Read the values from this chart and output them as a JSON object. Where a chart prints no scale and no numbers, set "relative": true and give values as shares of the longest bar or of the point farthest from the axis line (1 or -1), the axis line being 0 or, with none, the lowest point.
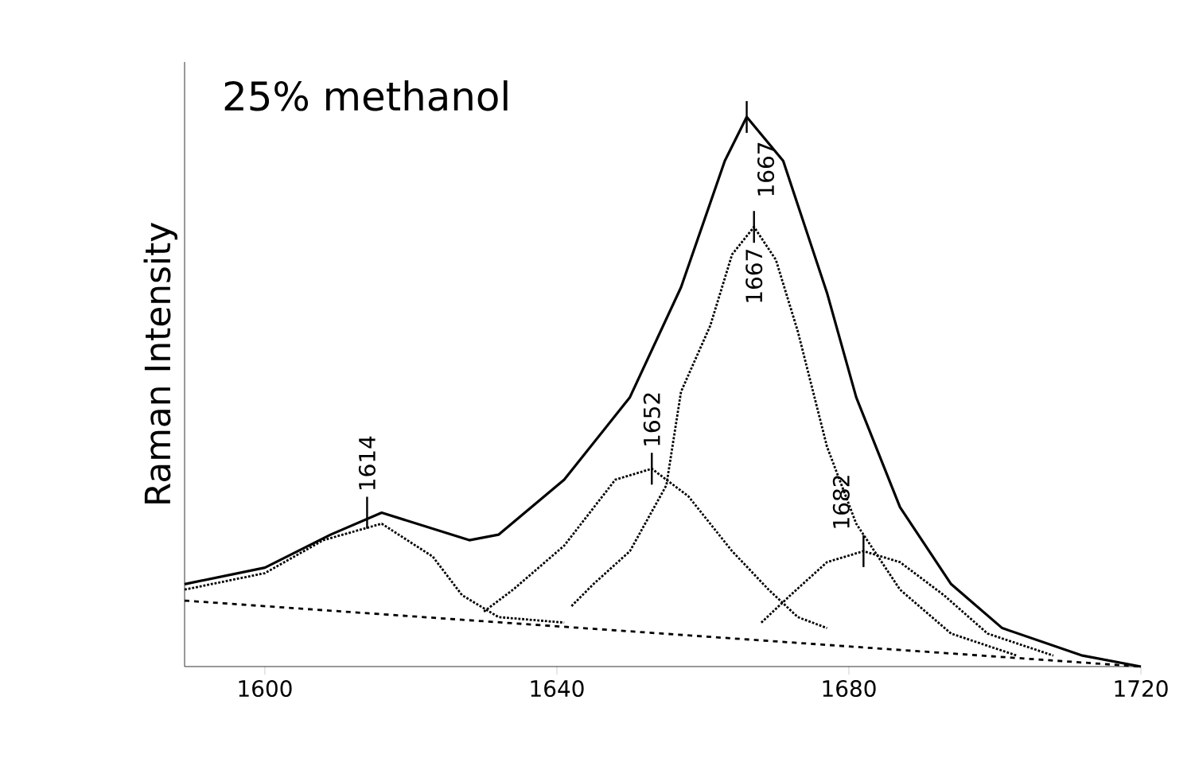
{
  "chart_data": {
    "type": "line",
    "relative": true,
    "ylabel": "Raman Intensity",
    "xlim": [
      1589,
      1720
    ],
    "xticks": [
      1600,
      1640,
      1680,
      1720
    ],
    "grid": false,
    "marker": "none",
    "series": [
      {
        "color": "#000000",
        "line_style": "solid",
        "x": [
          1589,
          1600,
          1609,
          1616,
          1628,
          1632,
          1641,
          1650,
          1657,
          1663,
          1666,
          1671,
          1677,
          1681,
          1687,
          1694,
          1701,
          1712,
          1720
        ],
        "values": [
          0.15,
          0.18,
          0.24,
          0.28,
          0.23,
          0.24,
          0.34,
          0.49,
          0.69,
          0.92,
          1.0,
          0.92,
          0.68,
          0.49,
          0.29,
          0.15,
          0.07,
          0.02,
          0
        ]
      },
      {
        "color": "#000000",
        "line_style": "dashed",
        "x": [
          1589,
          1720
        ],
        "values": [
          0.12,
          0
        ]
      },
      {
        "color": "#000000",
        "line_style": "dotted",
        "x": [
          1589,
          1600,
          1608,
          1616,
          1623,
          1627,
          1632,
          1641
        ],
        "values": [
          0.14,
          0.17,
          0.23,
          0.26,
          0.2,
          0.13,
          0.09,
          0.08
        ]
      },
      {
        "color": "#000000",
        "line_style": "dotted",
        "x": [
          1630,
          1634,
          1641,
          1648,
          1653,
          1658,
          1664,
          1669,
          1673,
          1677
        ],
        "values": [
          0.1,
          0.14,
          0.22,
          0.34,
          0.36,
          0.31,
          0.21,
          0.14,
          0.09,
          0.07
        ]
      },
      {
        "color": "#000000",
        "line_style": "dotted",
        "x": [
          1642,
          1645,
          1650,
          1655,
          1657,
          1661,
          1664,
          1667,
          1670,
          1673,
          1677,
          1681,
          1687,
          1694,
          1703
        ],
        "values": [
          0.11,
          0.15,
          0.21,
          0.33,
          0.5,
          0.62,
          0.75,
          0.8,
          0.74,
          0.61,
          0.4,
          0.26,
          0.14,
          0.06,
          0.02
        ]
      },
      {
        "color": "#000000",
        "line_style": "dotted",
        "x": [
          1668,
          1672,
          1677,
          1682,
          1687,
          1693,
          1699,
          1708
        ],
        "values": [
          0.08,
          0.13,
          0.19,
          0.21,
          0.19,
          0.13,
          0.06,
          0.02
        ]
      }
    ],
    "annotations": [
      "25% methanol",
      {
        "text": "1614",
        "x": 1614,
        "y": 0.28
      },
      {
        "text": "1652",
        "x": 1653,
        "y": 0.36
      },
      {
        "text": "1667",
        "x": 1666,
        "y": 1.0
      },
      {
        "text": "1667",
        "x": 1667,
        "y": 0.8
      },
      {
        "text": "1682",
        "x": 1682,
        "y": 0.21
      }
    ]
  }
}
